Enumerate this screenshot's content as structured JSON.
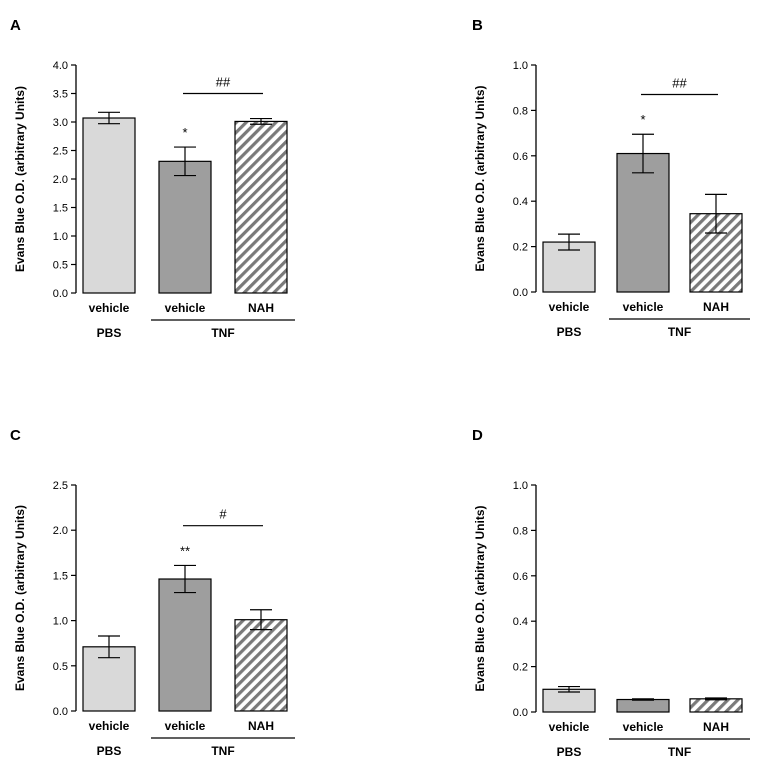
{
  "chart_data": [
    {
      "panel": "A",
      "type": "bar",
      "ylabel": "Evans Blue O.D. (arbitrary Units)",
      "ylim": [
        0,
        4.0
      ],
      "yticks": [
        "0.0",
        "0.5",
        "1.0",
        "1.5",
        "2.0",
        "2.5",
        "3.0",
        "3.5",
        "4.0"
      ],
      "categories": [
        "vehicle",
        "vehicle",
        "NAH"
      ],
      "groups": [
        {
          "label": "PBS",
          "members": [
            0
          ]
        },
        {
          "label": "TNF",
          "members": [
            1,
            2
          ]
        }
      ],
      "values": [
        3.07,
        2.31,
        3.01
      ],
      "errors": [
        0.1,
        0.25,
        0.05
      ],
      "fills": [
        "light",
        "dark",
        "hatched"
      ],
      "annotations": [
        {
          "bar": 1,
          "text": "*"
        }
      ],
      "comparisons": [
        {
          "from": 1,
          "to": 2,
          "y": 3.5,
          "text": "##"
        }
      ]
    },
    {
      "panel": "B",
      "type": "bar",
      "ylabel": "Evans Blue O.D. (arbitrary Units)",
      "ylim": [
        0,
        1.0
      ],
      "yticks": [
        "0.0",
        "0.2",
        "0.4",
        "0.6",
        "0.8",
        "1.0"
      ],
      "categories": [
        "vehicle",
        "vehicle",
        "NAH"
      ],
      "groups": [
        {
          "label": "PBS",
          "members": [
            0
          ]
        },
        {
          "label": "TNF",
          "members": [
            1,
            2
          ]
        }
      ],
      "values": [
        0.22,
        0.61,
        0.345
      ],
      "errors": [
        0.035,
        0.085,
        0.085
      ],
      "fills": [
        "light",
        "dark",
        "hatched"
      ],
      "annotations": [
        {
          "bar": 1,
          "text": "*"
        }
      ],
      "comparisons": [
        {
          "from": 1,
          "to": 2,
          "y": 0.87,
          "text": "##"
        }
      ]
    },
    {
      "panel": "C",
      "type": "bar",
      "ylabel": "Evans Blue O.D. (arbitrary Units)",
      "ylim": [
        0,
        2.5
      ],
      "yticks": [
        "0.0",
        "0.5",
        "1.0",
        "1.5",
        "2.0",
        "2.5"
      ],
      "categories": [
        "vehicle",
        "vehicle",
        "NAH"
      ],
      "groups": [
        {
          "label": "PBS",
          "members": [
            0
          ]
        },
        {
          "label": "TNF",
          "members": [
            1,
            2
          ]
        }
      ],
      "values": [
        0.71,
        1.46,
        1.01
      ],
      "errors": [
        0.12,
        0.15,
        0.11
      ],
      "fills": [
        "light",
        "dark",
        "hatched"
      ],
      "annotations": [
        {
          "bar": 1,
          "text": "**"
        }
      ],
      "comparisons": [
        {
          "from": 1,
          "to": 2,
          "y": 2.05,
          "text": "#"
        }
      ]
    },
    {
      "panel": "D",
      "type": "bar",
      "ylabel": "Evans Blue O.D. (arbitrary Units)",
      "ylim": [
        0,
        1.0
      ],
      "yticks": [
        "0.0",
        "0.2",
        "0.4",
        "0.6",
        "0.8",
        "1.0"
      ],
      "categories": [
        "vehicle",
        "vehicle",
        "NAH"
      ],
      "groups": [
        {
          "label": "PBS",
          "members": [
            0
          ]
        },
        {
          "label": "TNF",
          "members": [
            1,
            2
          ]
        }
      ],
      "values": [
        0.1,
        0.055,
        0.058
      ],
      "errors": [
        0.012,
        0.003,
        0.004
      ],
      "fills": [
        "light",
        "dark",
        "hatched"
      ],
      "annotations": [],
      "comparisons": []
    }
  ],
  "colors": {
    "light": "#d9d9d9",
    "dark": "#9e9e9e",
    "hatch": "#7a7a7a",
    "stroke": "#000000"
  }
}
